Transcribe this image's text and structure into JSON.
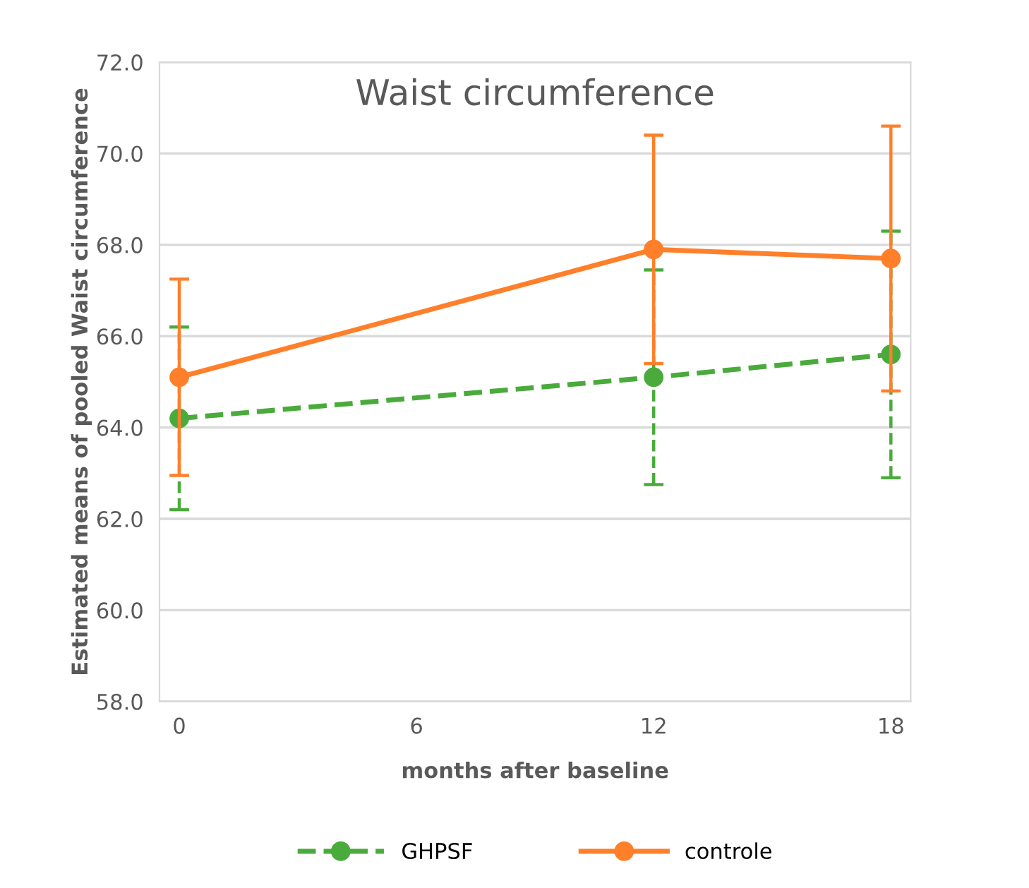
{
  "chart_data": {
    "type": "line",
    "title": "Waist circumference",
    "xlabel": "months after baseline",
    "ylabel": "Estimated means of pooled Waist circumference",
    "x": [
      0,
      12,
      18
    ],
    "xlim": [
      -0.5,
      18.5
    ],
    "xticks": [
      0,
      6,
      12,
      18
    ],
    "ylim": [
      58,
      72
    ],
    "yticks": [
      {
        "value": 58,
        "label": "58.0"
      },
      {
        "value": 60,
        "label": "60.0"
      },
      {
        "value": 62,
        "label": "62.0"
      },
      {
        "value": 64,
        "label": "64.0"
      },
      {
        "value": 66,
        "label": "66.0"
      },
      {
        "value": 68,
        "label": "68.0"
      },
      {
        "value": 70,
        "label": "70.0"
      },
      {
        "value": 72,
        "label": "72.0"
      }
    ],
    "grid": "y",
    "legend": "bottom",
    "marker": "circle",
    "series": [
      {
        "name": "GHPSF",
        "color": "#4aab3c",
        "line_style": "dashed",
        "values": [
          64.2,
          65.1,
          65.6
        ],
        "errors": [
          2.0,
          2.35,
          2.7
        ]
      },
      {
        "name": "controle",
        "color": "#ff7f2a",
        "line_style": "solid",
        "values": [
          65.1,
          67.9,
          67.7
        ],
        "errors": [
          2.15,
          2.5,
          2.9
        ]
      }
    ]
  }
}
